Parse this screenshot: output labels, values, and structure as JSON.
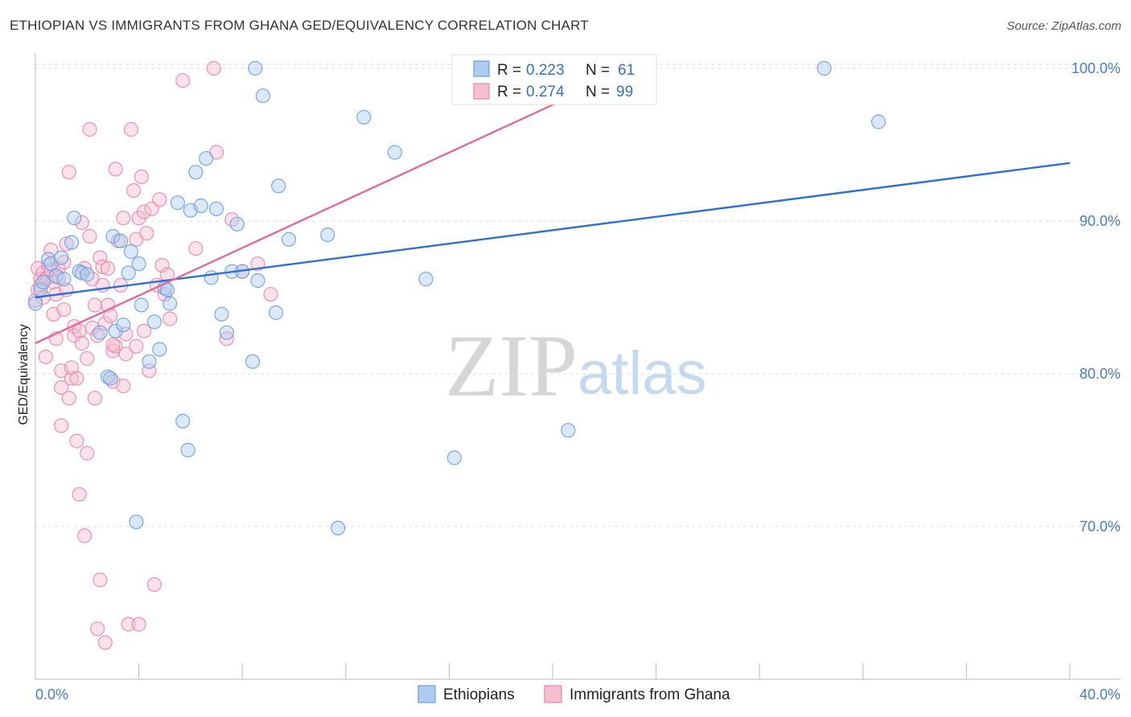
{
  "header": {
    "title": "ETHIOPIAN VS IMMIGRANTS FROM GHANA GED/EQUIVALENCY CORRELATION CHART",
    "source": "Source: ZipAtlas.com"
  },
  "watermark": {
    "zip": "ZIP",
    "atlas": "atlas"
  },
  "colors": {
    "blue": "#6d9fe0",
    "blue_fill": "#aecbf0",
    "blue_line": "#2f6fd0",
    "pink": "#e888a8",
    "pink_fill": "#f6bfd0",
    "pink_line": "#e06c93",
    "grid": "#dddddd"
  },
  "legend": {
    "r_label": "R =",
    "n_label": "N =",
    "series": [
      {
        "r": "0.223",
        "n": "61"
      },
      {
        "r": "0.274",
        "n": "99"
      }
    ]
  },
  "bottom_legend": [
    "Ethiopians",
    "Immigrants from Ghana"
  ],
  "chart_data": {
    "type": "scatter",
    "title": "ETHIOPIAN VS IMMIGRANTS FROM GHANA GED/EQUIVALENCY CORRELATION CHART",
    "xlabel": "",
    "ylabel": "GED/Equivalency",
    "xlim": [
      0,
      40
    ],
    "ylim": [
      60,
      101
    ],
    "x_tick_labels": [
      "0.0%",
      "40.0%"
    ],
    "y_ticks": [
      70,
      80,
      90,
      100
    ],
    "y_tick_labels": [
      "70.0%",
      "80.0%",
      "90.0%",
      "100.0%"
    ],
    "grid": true,
    "legend_position": "top-center",
    "series": [
      {
        "name": "Ethiopians",
        "r": 0.223,
        "n": 61,
        "trend": {
          "x": [
            0,
            40
          ],
          "y": [
            85.0,
            93.8
          ]
        },
        "points": [
          [
            0.0,
            84.6
          ],
          [
            0.2,
            85.5
          ],
          [
            0.3,
            86.0
          ],
          [
            0.5,
            87.5
          ],
          [
            0.6,
            87.2
          ],
          [
            0.8,
            86.4
          ],
          [
            1.0,
            87.6
          ],
          [
            1.1,
            86.2
          ],
          [
            1.4,
            88.6
          ],
          [
            1.5,
            90.2
          ],
          [
            1.7,
            86.7
          ],
          [
            1.8,
            86.6
          ],
          [
            2.0,
            86.5
          ],
          [
            2.5,
            82.7
          ],
          [
            2.8,
            79.8
          ],
          [
            3.0,
            89.0
          ],
          [
            3.1,
            82.8
          ],
          [
            3.3,
            88.7
          ],
          [
            3.4,
            83.2
          ],
          [
            3.6,
            86.6
          ],
          [
            3.7,
            88.0
          ],
          [
            4.0,
            87.2
          ],
          [
            4.1,
            84.5
          ],
          [
            4.4,
            80.8
          ],
          [
            4.6,
            83.4
          ],
          [
            4.8,
            81.6
          ],
          [
            5.0,
            85.6
          ],
          [
            5.2,
            84.6
          ],
          [
            5.5,
            91.2
          ],
          [
            5.7,
            76.9
          ],
          [
            5.9,
            75.0
          ],
          [
            6.0,
            90.7
          ],
          [
            6.2,
            93.2
          ],
          [
            6.4,
            91.0
          ],
          [
            6.6,
            94.1
          ],
          [
            6.8,
            86.3
          ],
          [
            7.0,
            90.8
          ],
          [
            7.2,
            83.9
          ],
          [
            7.4,
            82.7
          ],
          [
            7.6,
            86.7
          ],
          [
            7.8,
            89.8
          ],
          [
            8.0,
            86.7
          ],
          [
            8.4,
            80.8
          ],
          [
            8.6,
            86.1
          ],
          [
            8.8,
            98.2
          ],
          [
            9.3,
            84.0
          ],
          [
            9.4,
            92.3
          ],
          [
            9.8,
            88.8
          ],
          [
            11.3,
            89.1
          ],
          [
            11.7,
            69.9
          ],
          [
            12.7,
            96.8
          ],
          [
            13.9,
            94.5
          ],
          [
            15.1,
            86.2
          ],
          [
            16.2,
            74.5
          ],
          [
            20.6,
            76.3
          ],
          [
            8.5,
            100.0
          ],
          [
            30.5,
            100.0
          ],
          [
            32.6,
            96.5
          ],
          [
            3.9,
            70.3
          ],
          [
            5.1,
            85.5
          ],
          [
            2.9,
            79.7
          ]
        ]
      },
      {
        "name": "Immigrants from Ghana",
        "r": 0.274,
        "n": 99,
        "trend": {
          "x": [
            0,
            20.5
          ],
          "y": [
            82.0,
            98.0
          ]
        },
        "points": [
          [
            0.0,
            84.8
          ],
          [
            0.1,
            85.5
          ],
          [
            0.1,
            86.9
          ],
          [
            0.2,
            86.2
          ],
          [
            0.2,
            85.8
          ],
          [
            0.3,
            86.6
          ],
          [
            0.3,
            85.0
          ],
          [
            0.4,
            81.1
          ],
          [
            0.4,
            86.2
          ],
          [
            0.5,
            87.1
          ],
          [
            0.5,
            86.3
          ],
          [
            0.6,
            86.8
          ],
          [
            0.6,
            88.1
          ],
          [
            0.7,
            86.0
          ],
          [
            0.7,
            83.9
          ],
          [
            0.8,
            82.3
          ],
          [
            0.8,
            85.2
          ],
          [
            0.9,
            86.9
          ],
          [
            0.9,
            86.3
          ],
          [
            1.0,
            79.1
          ],
          [
            1.0,
            80.2
          ],
          [
            1.0,
            76.6
          ],
          [
            1.1,
            84.2
          ],
          [
            1.1,
            87.3
          ],
          [
            1.2,
            88.5
          ],
          [
            1.2,
            85.5
          ],
          [
            1.3,
            93.2
          ],
          [
            1.3,
            78.4
          ],
          [
            1.4,
            79.7
          ],
          [
            1.4,
            80.4
          ],
          [
            1.5,
            83.1
          ],
          [
            1.5,
            82.5
          ],
          [
            1.6,
            79.7
          ],
          [
            1.6,
            75.6
          ],
          [
            1.7,
            72.1
          ],
          [
            1.7,
            82.8
          ],
          [
            1.8,
            89.9
          ],
          [
            1.8,
            82.0
          ],
          [
            1.9,
            69.4
          ],
          [
            1.9,
            86.9
          ],
          [
            2.0,
            81.0
          ],
          [
            2.0,
            74.8
          ],
          [
            2.1,
            96.0
          ],
          [
            2.1,
            89.0
          ],
          [
            2.2,
            83.0
          ],
          [
            2.2,
            86.2
          ],
          [
            2.3,
            84.5
          ],
          [
            2.3,
            78.4
          ],
          [
            2.4,
            63.3
          ],
          [
            2.4,
            82.5
          ],
          [
            2.5,
            66.5
          ],
          [
            2.5,
            87.6
          ],
          [
            2.6,
            87.0
          ],
          [
            2.6,
            85.8
          ],
          [
            2.7,
            83.3
          ],
          [
            2.7,
            62.4
          ],
          [
            2.8,
            84.5
          ],
          [
            2.8,
            86.9
          ],
          [
            2.9,
            83.8
          ],
          [
            3.0,
            81.5
          ],
          [
            3.0,
            79.5
          ],
          [
            3.1,
            93.4
          ],
          [
            3.1,
            81.8
          ],
          [
            3.2,
            88.7
          ],
          [
            3.3,
            85.8
          ],
          [
            3.4,
            90.2
          ],
          [
            3.4,
            79.2
          ],
          [
            3.5,
            82.6
          ],
          [
            3.5,
            81.3
          ],
          [
            3.6,
            63.6
          ],
          [
            3.7,
            96.0
          ],
          [
            3.8,
            92.0
          ],
          [
            3.9,
            81.8
          ],
          [
            3.9,
            88.8
          ],
          [
            4.0,
            90.2
          ],
          [
            4.0,
            63.6
          ],
          [
            4.1,
            92.9
          ],
          [
            4.2,
            90.6
          ],
          [
            4.3,
            89.2
          ],
          [
            4.4,
            80.2
          ],
          [
            4.5,
            90.8
          ],
          [
            4.6,
            66.2
          ],
          [
            4.7,
            85.8
          ],
          [
            4.8,
            91.4
          ],
          [
            4.9,
            87.1
          ],
          [
            5.0,
            85.2
          ],
          [
            5.1,
            86.5
          ],
          [
            5.2,
            83.6
          ],
          [
            5.7,
            99.2
          ],
          [
            6.2,
            88.2
          ],
          [
            6.9,
            100.0
          ],
          [
            7.0,
            94.5
          ],
          [
            7.4,
            82.3
          ],
          [
            7.6,
            90.1
          ],
          [
            8.0,
            86.7
          ],
          [
            8.6,
            87.2
          ],
          [
            9.1,
            85.2
          ],
          [
            4.2,
            82.8
          ],
          [
            3.0,
            81.9
          ]
        ]
      }
    ]
  }
}
